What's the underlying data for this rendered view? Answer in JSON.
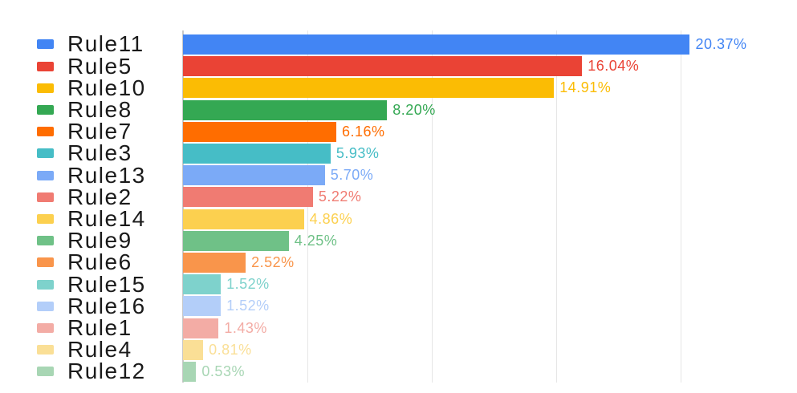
{
  "chart_data": {
    "type": "bar",
    "orientation": "horizontal",
    "title": "",
    "xlabel": "",
    "ylabel": "",
    "categories": [
      "Rule11",
      "Rule5",
      "Rule10",
      "Rule8",
      "Rule7",
      "Rule3",
      "Rule13",
      "Rule2",
      "Rule14",
      "Rule9",
      "Rule6",
      "Rule15",
      "Rule16",
      "Rule1",
      "Rule4",
      "Rule12"
    ],
    "values": [
      20.37,
      16.04,
      14.91,
      8.2,
      6.16,
      5.93,
      5.7,
      5.22,
      4.86,
      4.25,
      2.52,
      1.52,
      1.52,
      1.43,
      0.81,
      0.53
    ],
    "value_labels": [
      "20.37%",
      "16.04%",
      "14.91%",
      "8.20%",
      "6.16%",
      "5.93%",
      "5.70%",
      "5.22%",
      "4.86%",
      "4.25%",
      "2.52%",
      "1.52%",
      "1.52%",
      "1.43%",
      "0.81%",
      "0.53%"
    ],
    "colors": [
      "#4285F4",
      "#EA4335",
      "#FBBC04",
      "#34A853",
      "#FF6D00",
      "#46BDC6",
      "#7BAAF7",
      "#F07B72",
      "#FCD04F",
      "#6FC187",
      "#F9954B",
      "#7ED2CC",
      "#B3CEF9",
      "#F3ACA5",
      "#FADF96",
      "#A8D6B4"
    ],
    "xlim": [
      0,
      24.7
    ],
    "gridline_values": [
      5,
      10,
      15,
      20
    ],
    "grid": "on",
    "legend_position": "left"
  },
  "styles": {
    "background": "#FFFFFF",
    "gridline_color": "#E6E6E6",
    "baseline_color": "#C9C9C9",
    "legend_text_color": "#1A1A1A"
  }
}
